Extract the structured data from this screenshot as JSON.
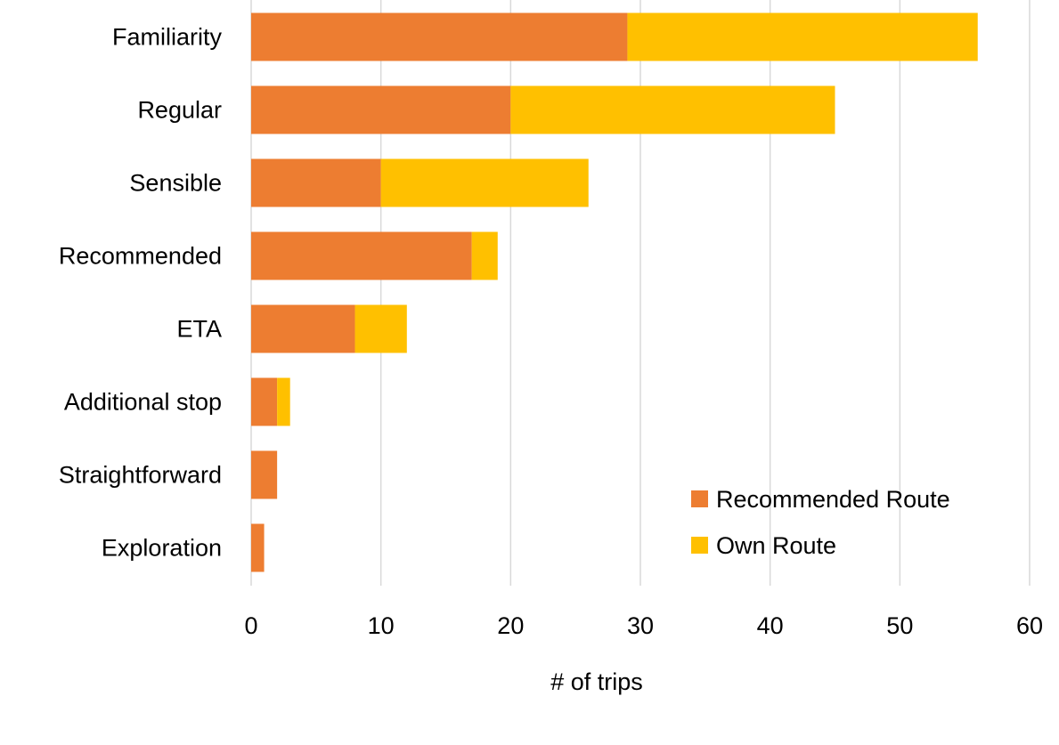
{
  "chart_data": {
    "type": "bar",
    "orientation": "horizontal",
    "stacked": true,
    "categories": [
      "Familiarity",
      "Regular",
      "Sensible",
      "Recommended",
      "ETA",
      "Additional stop",
      "Straightforward",
      "Exploration"
    ],
    "series": [
      {
        "name": "Recommended Route",
        "color": "#ED7D31",
        "values": [
          29,
          20,
          10,
          17,
          8,
          2,
          2,
          1
        ]
      },
      {
        "name": "Own Route",
        "color": "#FFC000",
        "values": [
          27,
          25,
          16,
          2,
          4,
          1,
          0,
          0
        ]
      }
    ],
    "xlabel": "# of trips",
    "ylabel": "",
    "xlim": [
      0,
      60
    ],
    "xticks": [
      "0",
      "10",
      "20",
      "30",
      "40",
      "50",
      "60"
    ],
    "grid": true,
    "legend": "bottom-right"
  }
}
